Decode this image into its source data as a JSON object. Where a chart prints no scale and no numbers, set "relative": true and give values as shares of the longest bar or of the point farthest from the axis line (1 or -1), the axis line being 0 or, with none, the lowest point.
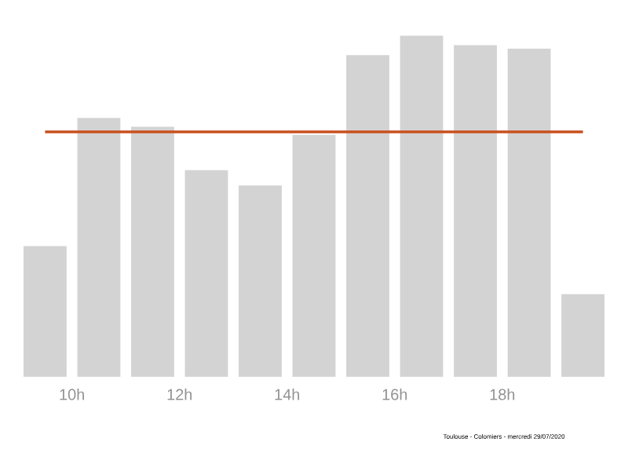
{
  "chart_data": {
    "type": "bar",
    "relative": true,
    "x": [
      9.5,
      10.5,
      11.5,
      12.5,
      13.5,
      14.5,
      15.5,
      16.5,
      17.5,
      18.5,
      19.5
    ],
    "values": [
      0.383,
      0.759,
      0.733,
      0.606,
      0.561,
      0.709,
      0.943,
      1,
      0.972,
      0.962,
      0.242
    ],
    "color": "#d3d3d3",
    "xlim": [
      9.1,
      19.9
    ],
    "xticks": [
      {
        "value": 10,
        "label": "10h"
      },
      {
        "value": 12,
        "label": "12h"
      },
      {
        "value": 14,
        "label": "14h"
      },
      {
        "value": 16,
        "label": "16h"
      },
      {
        "value": 18,
        "label": "18h"
      }
    ],
    "ref_lines": [
      {
        "axis": "y",
        "value": 0.718,
        "color": "#c8501e"
      }
    ],
    "annotations": [
      "Toulouse - Colomiers - mercredi 29/07/2020"
    ]
  }
}
